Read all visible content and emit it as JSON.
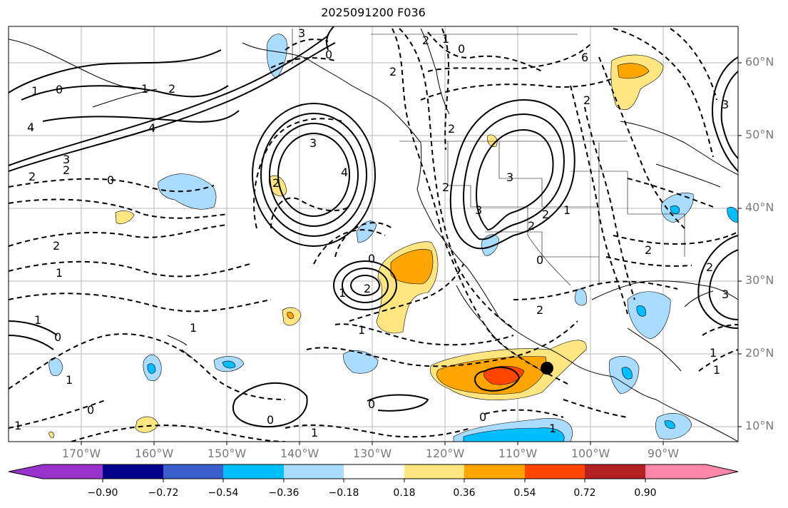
{
  "map": {
    "title": "2025091200 F036",
    "latitude_labels": [
      "60°N",
      "50°N",
      "40°N",
      "30°N",
      "20°N",
      "10°N"
    ],
    "longitude_labels": [
      "170°W",
      "160°W",
      "150°W",
      "140°W",
      "130°W",
      "120°W",
      "110°W",
      "100°W",
      "90°W"
    ],
    "contour_labels": [
      "1",
      "0",
      "1",
      "2",
      "4",
      "4",
      "3",
      "2",
      "0",
      "2",
      "1",
      "1",
      "0",
      "1",
      "1",
      "2",
      "0",
      "4",
      "3",
      "2",
      "0",
      "3",
      "2",
      "2",
      "0",
      "1",
      "1",
      "1",
      "2",
      "3",
      "2",
      "2",
      "3",
      "2",
      "0",
      "0",
      "2",
      "2",
      "1",
      "2",
      "3",
      "2",
      "3",
      "1",
      "1",
      "1",
      "0",
      "0",
      "1",
      "0",
      "1",
      "2",
      "6"
    ],
    "marker": "station-marker",
    "colors": {
      "fill_neg_light": "#aadcff",
      "fill_neg_mid": "#00bfff",
      "fill_pos_light": "#ffe680",
      "fill_pos_mid": "#ffa500",
      "fill_pos_strong": "#ff4500"
    }
  },
  "colorbar": {
    "ticks": [
      "−0.90",
      "−0.72",
      "−0.54",
      "−0.36",
      "−0.18",
      "0.18",
      "0.36",
      "0.54",
      "0.72",
      "0.90"
    ],
    "segment_colors": [
      "#9932cc",
      "#00008b",
      "#3a5fcd",
      "#00bfff",
      "#aadcff",
      "#ffffff",
      "#ffe680",
      "#ffa500",
      "#ff4500",
      "#b22222",
      "#ff88aa"
    ]
  }
}
